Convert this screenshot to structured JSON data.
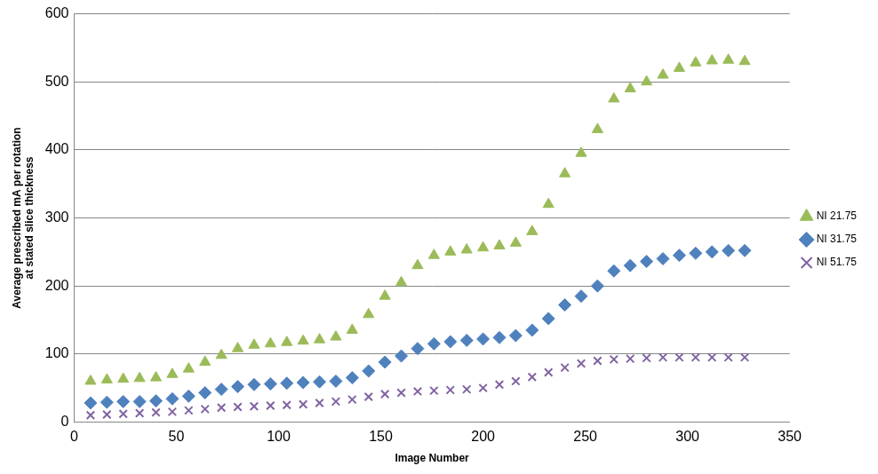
{
  "chart_data": {
    "type": "scatter",
    "x_label": "Image Number",
    "y_label": "Average prescribed mA per rotation at stated slice thickness",
    "x": [
      8,
      16,
      24,
      32,
      40,
      48,
      56,
      64,
      72,
      80,
      88,
      96,
      104,
      112,
      120,
      128,
      136,
      144,
      152,
      160,
      168,
      176,
      184,
      192,
      200,
      208,
      216,
      224,
      232,
      240,
      248,
      256,
      264,
      272,
      280,
      288,
      296,
      304,
      312,
      320,
      328
    ],
    "series": [
      {
        "name": "NI 21.75",
        "color": "#9bbb59",
        "marker": "triangle",
        "values": [
          60,
          62,
          63,
          64,
          65,
          70,
          78,
          88,
          98,
          108,
          113,
          115,
          117,
          119,
          121,
          125,
          135,
          158,
          185,
          205,
          230,
          245,
          250,
          253,
          256,
          259,
          263,
          280,
          320,
          365,
          395,
          430,
          475,
          490,
          500,
          510,
          520,
          528,
          531,
          532,
          530
        ]
      },
      {
        "name": "NI 31.75",
        "color": "#4f81bd",
        "marker": "diamond",
        "values": [
          28,
          29,
          30,
          30,
          31,
          34,
          38,
          43,
          48,
          52,
          55,
          56,
          57,
          58,
          59,
          60,
          65,
          75,
          88,
          97,
          108,
          115,
          118,
          120,
          122,
          124,
          127,
          135,
          152,
          172,
          185,
          200,
          222,
          230,
          236,
          240,
          245,
          248,
          250,
          252,
          252
        ]
      },
      {
        "name": "NI 51.75",
        "color": "#8064a2",
        "marker": "x",
        "values": [
          10,
          11,
          12,
          13,
          14,
          15,
          17,
          19,
          21,
          22,
          23,
          24,
          25,
          26,
          28,
          30,
          33,
          37,
          41,
          43,
          45,
          46,
          47,
          48,
          50,
          55,
          60,
          66,
          73,
          80,
          86,
          90,
          92,
          93,
          94,
          95,
          95,
          95,
          95,
          95,
          95
        ]
      }
    ],
    "xlim": [
      0,
      350
    ],
    "xticks": [
      0,
      50,
      100,
      150,
      200,
      250,
      300,
      350
    ],
    "ylim": [
      0,
      600
    ],
    "yticks": [
      0,
      100,
      200,
      300,
      400,
      500,
      600
    ],
    "grid": true,
    "legend": "right"
  }
}
